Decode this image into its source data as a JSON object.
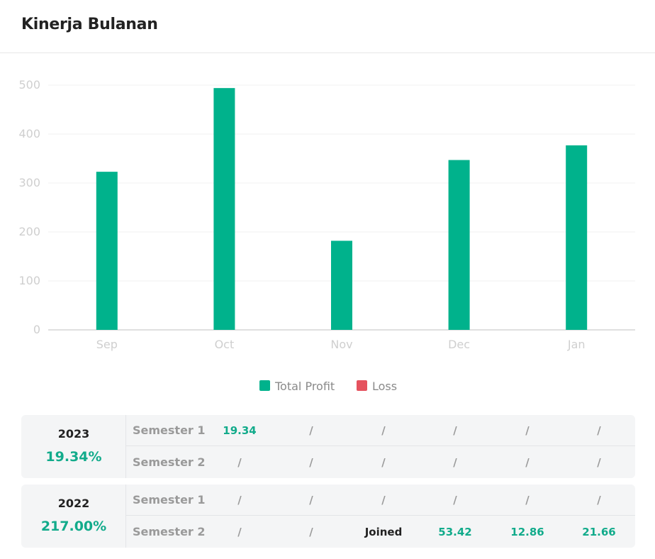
{
  "header": {
    "title": "Kinerja Bulanan"
  },
  "chart_data": {
    "type": "bar",
    "categories": [
      "Sep",
      "Oct",
      "Nov",
      "Dec",
      "Jan"
    ],
    "series": [
      {
        "name": "Total Profit",
        "values": [
          323,
          494,
          182,
          347,
          377
        ]
      },
      {
        "name": "Loss",
        "values": [
          0,
          0,
          0,
          0,
          0
        ]
      }
    ],
    "title": "",
    "xlabel": "",
    "ylabel": "",
    "ylim": [
      0,
      500
    ],
    "yticks": [
      0,
      100,
      200,
      300,
      400,
      500
    ],
    "grid": true,
    "legend": "bottom-center",
    "colors": {
      "Total Profit": "#00b28c",
      "Loss": "#e5525e"
    }
  },
  "performance": [
    {
      "year": "2023",
      "percent": "19.34%",
      "rows": [
        {
          "label": "Semester 1",
          "cells": [
            "19.34",
            "/",
            "/",
            "/",
            "/",
            "/"
          ]
        },
        {
          "label": "Semester 2",
          "cells": [
            "/",
            "/",
            "/",
            "/",
            "/",
            "/"
          ]
        }
      ]
    },
    {
      "year": "2022",
      "percent": "217.00%",
      "rows": [
        {
          "label": "Semester 1",
          "cells": [
            "/",
            "/",
            "/",
            "/",
            "/",
            "/"
          ]
        },
        {
          "label": "Semester 2",
          "cells": [
            "/",
            "/",
            "Joined",
            "53.42",
            "12.86",
            "21.66"
          ]
        }
      ]
    }
  ]
}
